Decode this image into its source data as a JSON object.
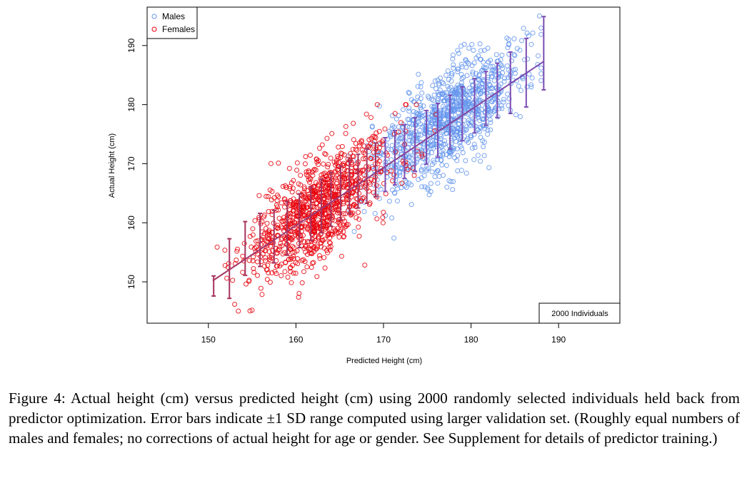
{
  "chart_data": {
    "type": "scatter",
    "title": "",
    "xlabel": "Predicted Height (cm)",
    "ylabel": "Actual Height (cm)",
    "xlim": [
      143,
      197
    ],
    "ylim": [
      143,
      196.5
    ],
    "xticks": [
      150,
      160,
      170,
      180,
      190
    ],
    "yticks": [
      150,
      160,
      170,
      180,
      190
    ],
    "grid": false,
    "legend_position": "top-left",
    "annotation": "2000 Individuals",
    "series": [
      {
        "name": "Males",
        "color": "#6495ED",
        "marker": "open-circle",
        "n_points": 1000,
        "predicted_mean": 177.5,
        "predicted_sd": 4.2,
        "actual_mean": 177.5,
        "actual_sd": 5.8,
        "predicted_range": [
          166,
          188
        ],
        "actual_range": [
          156,
          195
        ],
        "points": [
          [
            176.0,
            178.5
          ],
          [
            172.3,
            171.0
          ],
          [
            181.6,
            186.2
          ],
          [
            178.4,
            182.1
          ],
          [
            174.9,
            168.8
          ],
          [
            183.1,
            187.4
          ],
          [
            170.8,
            175.2
          ],
          [
            179.7,
            173.6
          ],
          [
            175.5,
            180.9
          ],
          [
            177.2,
            169.7
          ],
          [
            185.0,
            188.3
          ],
          [
            168.9,
            166.4
          ],
          [
            180.3,
            179.1
          ],
          [
            173.6,
            176.5
          ],
          [
            182.7,
            181.0
          ],
          [
            176.8,
            172.3
          ],
          [
            171.5,
            168.0
          ],
          [
            179.1,
            184.6
          ],
          [
            174.2,
            177.8
          ],
          [
            186.4,
            192.1
          ],
          [
            169.7,
            171.9
          ],
          [
            177.9,
            175.4
          ],
          [
            181.0,
            177.3
          ],
          [
            175.1,
            165.6
          ],
          [
            183.8,
            183.9
          ],
          [
            172.9,
            179.4
          ],
          [
            178.6,
            188.7
          ],
          [
            176.3,
            181.7
          ],
          [
            180.8,
            171.4
          ],
          [
            174.6,
            173.2
          ],
          [
            167.8,
            161.9
          ],
          [
            184.5,
            185.6
          ],
          [
            173.2,
            163.1
          ],
          [
            178.1,
            176.9
          ],
          [
            170.2,
            170.3
          ],
          [
            182.2,
            178.8
          ],
          [
            175.9,
            184.0
          ],
          [
            179.4,
            180.4
          ],
          [
            177.5,
            167.1
          ],
          [
            171.9,
            174.3
          ],
          [
            187.6,
            186.8
          ],
          [
            173.9,
            181.3
          ],
          [
            180.1,
            190.2
          ],
          [
            176.6,
            170.6
          ],
          [
            169.1,
            164.7
          ],
          [
            185.7,
            182.4
          ],
          [
            174.4,
            178.0
          ],
          [
            181.9,
            175.7
          ],
          [
            178.9,
            185.1
          ],
          [
            172.6,
            166.9
          ]
        ]
      },
      {
        "name": "Females",
        "color": "#E8000B",
        "marker": "open-circle",
        "n_points": 1000,
        "predicted_mean": 162.5,
        "predicted_sd": 4.0,
        "actual_mean": 162.5,
        "actual_sd": 5.7,
        "predicted_range": [
          151,
          176
        ],
        "actual_range": [
          145,
          180
        ],
        "points": [
          [
            162.0,
            163.8
          ],
          [
            158.4,
            156.1
          ],
          [
            166.2,
            170.5
          ],
          [
            160.9,
            165.2
          ],
          [
            164.5,
            158.7
          ],
          [
            156.7,
            159.9
          ],
          [
            163.3,
            168.4
          ],
          [
            159.6,
            152.8
          ],
          [
            167.8,
            173.0
          ],
          [
            161.4,
            160.3
          ],
          [
            155.2,
            151.6
          ],
          [
            165.0,
            162.9
          ],
          [
            160.1,
            168.9
          ],
          [
            163.9,
            155.4
          ],
          [
            157.8,
            163.0
          ],
          [
            168.6,
            167.3
          ],
          [
            162.7,
            172.6
          ],
          [
            159.0,
            157.7
          ],
          [
            166.9,
            164.1
          ],
          [
            154.1,
            156.5
          ],
          [
            161.8,
            154.9
          ],
          [
            164.1,
            175.1
          ],
          [
            158.9,
            166.0
          ],
          [
            170.3,
            171.8
          ],
          [
            160.5,
            161.5
          ],
          [
            156.0,
            148.9
          ],
          [
            163.6,
            165.9
          ],
          [
            167.2,
            160.6
          ],
          [
            157.3,
            158.4
          ],
          [
            165.7,
            176.3
          ],
          [
            159.3,
            162.2
          ],
          [
            162.4,
            150.9
          ],
          [
            169.1,
            174.4
          ],
          [
            155.8,
            164.6
          ],
          [
            164.8,
            169.6
          ],
          [
            160.7,
            153.6
          ],
          [
            166.5,
            166.8
          ],
          [
            158.0,
            170.1
          ],
          [
            162.9,
            159.4
          ],
          [
            153.0,
            146.2
          ],
          [
            167.5,
            163.7
          ],
          [
            161.1,
            171.2
          ],
          [
            164.3,
            161.8
          ],
          [
            157.0,
            154.2
          ],
          [
            165.3,
            172.9
          ],
          [
            159.8,
            160.0
          ],
          [
            163.0,
            157.0
          ],
          [
            171.2,
            168.1
          ],
          [
            156.4,
            161.3
          ],
          [
            160.3,
            147.4
          ]
        ]
      }
    ],
    "fit_line": {
      "name": "fit",
      "color": "#7B4DB3",
      "x": [
        150.5,
        188.3
      ],
      "y": [
        150.2,
        187.3
      ]
    },
    "error_bars": {
      "color_female": "#A6335E",
      "color_male": "#7B4DB3",
      "items": [
        {
          "x": 150.6,
          "mean": 149.3,
          "lo": 147.6,
          "hi": 151.0
        },
        {
          "x": 152.4,
          "mean": 152.3,
          "lo": 147.2,
          "hi": 157.3
        },
        {
          "x": 154.2,
          "mean": 155.5,
          "lo": 151.1,
          "hi": 160.2
        },
        {
          "x": 155.9,
          "mean": 157.1,
          "lo": 152.6,
          "hi": 161.6
        },
        {
          "x": 157.5,
          "mean": 157.8,
          "lo": 153.2,
          "hi": 162.1
        },
        {
          "x": 159.0,
          "mean": 159.0,
          "lo": 154.5,
          "hi": 163.6
        },
        {
          "x": 160.4,
          "mean": 160.3,
          "lo": 155.8,
          "hi": 164.9
        },
        {
          "x": 161.7,
          "mean": 161.6,
          "lo": 157.0,
          "hi": 166.1
        },
        {
          "x": 162.9,
          "mean": 162.9,
          "lo": 158.3,
          "hi": 167.4
        },
        {
          "x": 164.0,
          "mean": 164.0,
          "lo": 159.4,
          "hi": 168.5
        },
        {
          "x": 165.1,
          "mean": 165.1,
          "lo": 160.5,
          "hi": 169.6
        },
        {
          "x": 166.1,
          "mean": 166.1,
          "lo": 161.5,
          "hi": 170.6
        },
        {
          "x": 167.1,
          "mean": 167.0,
          "lo": 162.5,
          "hi": 171.6
        },
        {
          "x": 168.1,
          "mean": 167.9,
          "lo": 163.3,
          "hi": 172.5
        },
        {
          "x": 169.1,
          "mean": 168.9,
          "lo": 164.4,
          "hi": 173.5
        },
        {
          "x": 170.2,
          "mean": 169.8,
          "lo": 165.3,
          "hi": 174.4
        },
        {
          "x": 171.3,
          "mean": 171.0,
          "lo": 166.4,
          "hi": 175.6
        },
        {
          "x": 172.4,
          "mean": 172.0,
          "lo": 167.5,
          "hi": 176.6
        },
        {
          "x": 173.6,
          "mean": 173.2,
          "lo": 168.7,
          "hi": 177.8
        },
        {
          "x": 174.9,
          "mean": 174.4,
          "lo": 169.9,
          "hi": 179.0
        },
        {
          "x": 176.2,
          "mean": 175.7,
          "lo": 171.1,
          "hi": 180.2
        },
        {
          "x": 177.6,
          "mean": 177.1,
          "lo": 172.5,
          "hi": 181.6
        },
        {
          "x": 179.0,
          "mean": 178.5,
          "lo": 173.9,
          "hi": 183.0
        },
        {
          "x": 180.4,
          "mean": 179.8,
          "lo": 175.2,
          "hi": 184.4
        },
        {
          "x": 181.7,
          "mean": 181.1,
          "lo": 176.5,
          "hi": 185.6
        },
        {
          "x": 183.0,
          "mean": 182.4,
          "lo": 177.8,
          "hi": 187.0
        },
        {
          "x": 184.5,
          "mean": 183.7,
          "lo": 178.5,
          "hi": 188.9
        },
        {
          "x": 186.3,
          "mean": 185.4,
          "lo": 179.6,
          "hi": 191.2
        },
        {
          "x": 188.3,
          "mean": 188.7,
          "lo": 182.5,
          "hi": 194.9
        }
      ]
    }
  },
  "caption": {
    "text": "Figure 4: Actual height (cm) versus predicted height (cm) using 2000 randomly selected individuals held back from predictor optimization. Error bars indicate ±1 SD range computed using larger validation set. (Roughly equal numbers of males and females; no corrections of actual height for age or gender. See Supplement for details of predictor training.)"
  }
}
